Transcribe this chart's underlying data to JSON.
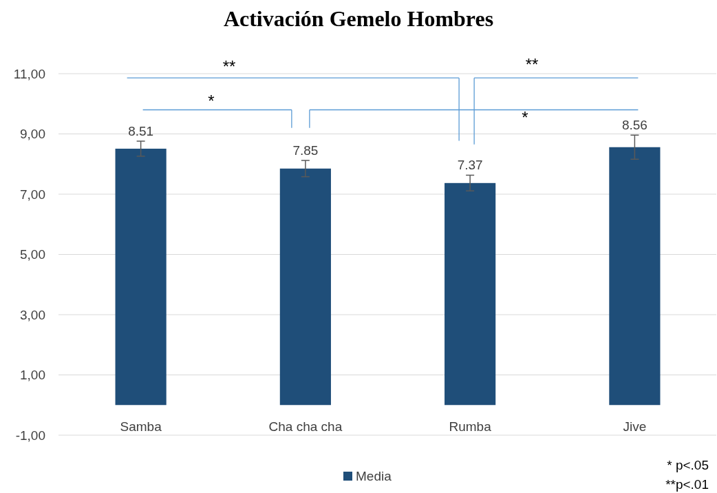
{
  "chart_data": {
    "type": "bar",
    "title": "Activación Gemelo Hombres",
    "categories": [
      "Samba",
      "Cha cha cha",
      "Rumba",
      "Jive"
    ],
    "series": [
      {
        "name": "Media",
        "color": "#1f4e79",
        "values": [
          8.51,
          7.85,
          7.37,
          8.56
        ],
        "errors": [
          0.25,
          0.27,
          0.26,
          0.4
        ]
      }
    ],
    "ylim": [
      -1,
      11
    ],
    "yticks": [
      {
        "value": -1,
        "label": "-1,00"
      },
      {
        "value": 1,
        "label": "1,00"
      },
      {
        "value": 3,
        "label": "3,00"
      },
      {
        "value": 5,
        "label": "5,00"
      },
      {
        "value": 7,
        "label": "7,00"
      },
      {
        "value": 9,
        "label": "9,00"
      },
      {
        "value": 11,
        "label": "11,00"
      }
    ],
    "grid": "y",
    "legend": "bottom",
    "data_labels": true,
    "annotations": [
      "**",
      "**",
      "*",
      "*",
      "* p<.05",
      "**p<.01"
    ]
  }
}
